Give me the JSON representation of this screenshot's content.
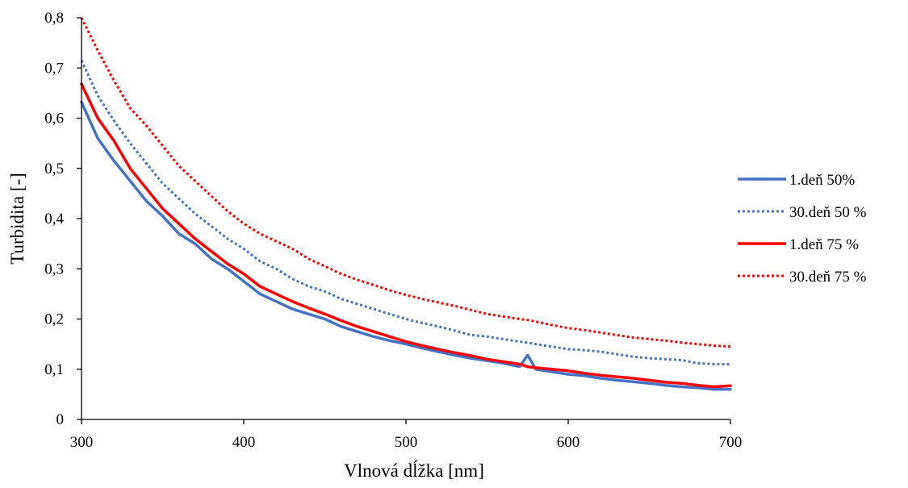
{
  "chart_data": {
    "type": "line",
    "title": "",
    "xlabel": "Vlnová dĺžka [nm]",
    "ylabel": "Turbidita [-]",
    "xlim": [
      300,
      700
    ],
    "ylim": [
      0,
      0.8
    ],
    "x_ticks": [
      300,
      400,
      500,
      600,
      700
    ],
    "x_tick_labels": [
      "300",
      "400",
      "500",
      "600",
      "700"
    ],
    "y_ticks": [
      0,
      0.1,
      0.2,
      0.3,
      0.4,
      0.5,
      0.6,
      0.7,
      0.8
    ],
    "y_tick_labels": [
      "0",
      "0,1",
      "0,2",
      "0,3",
      "0,4",
      "0,5",
      "0,6",
      "0,7",
      "0,8"
    ],
    "grid": false,
    "legend_position": "right",
    "x": [
      300,
      310,
      320,
      330,
      340,
      350,
      360,
      370,
      380,
      390,
      400,
      410,
      420,
      430,
      440,
      450,
      460,
      470,
      480,
      490,
      500,
      510,
      520,
      530,
      540,
      550,
      560,
      570,
      575,
      580,
      590,
      600,
      610,
      620,
      630,
      640,
      650,
      660,
      670,
      680,
      690,
      700
    ],
    "series": [
      {
        "name": "1.deň 50%",
        "color": "#4472C4",
        "style": "solid",
        "values": [
          0.632,
          0.56,
          0.515,
          0.475,
          0.435,
          0.405,
          0.37,
          0.35,
          0.32,
          0.3,
          0.275,
          0.25,
          0.235,
          0.22,
          0.21,
          0.2,
          0.185,
          0.175,
          0.165,
          0.157,
          0.15,
          0.142,
          0.135,
          0.128,
          0.122,
          0.117,
          0.112,
          0.105,
          0.128,
          0.1,
          0.095,
          0.09,
          0.087,
          0.082,
          0.078,
          0.075,
          0.072,
          0.068,
          0.065,
          0.063,
          0.06,
          0.06
        ]
      },
      {
        "name": "30.deň 50 %",
        "color": "#4472C4",
        "style": "dotted",
        "values": [
          0.715,
          0.645,
          0.595,
          0.55,
          0.51,
          0.47,
          0.44,
          0.41,
          0.385,
          0.36,
          0.34,
          0.315,
          0.3,
          0.28,
          0.265,
          0.255,
          0.24,
          0.23,
          0.22,
          0.21,
          0.2,
          0.192,
          0.185,
          0.177,
          0.168,
          0.165,
          0.16,
          0.155,
          0.153,
          0.15,
          0.145,
          0.14,
          0.138,
          0.135,
          0.13,
          0.125,
          0.122,
          0.12,
          0.118,
          0.112,
          0.11,
          0.11
        ]
      },
      {
        "name": "1.deň 75 %",
        "color": "#FF0000",
        "style": "solid",
        "values": [
          0.668,
          0.6,
          0.555,
          0.5,
          0.46,
          0.42,
          0.39,
          0.36,
          0.335,
          0.31,
          0.29,
          0.265,
          0.25,
          0.235,
          0.222,
          0.21,
          0.197,
          0.185,
          0.175,
          0.165,
          0.155,
          0.147,
          0.14,
          0.133,
          0.127,
          0.12,
          0.115,
          0.11,
          0.105,
          0.103,
          0.1,
          0.097,
          0.092,
          0.088,
          0.085,
          0.082,
          0.078,
          0.074,
          0.072,
          0.068,
          0.065,
          0.067
        ]
      },
      {
        "name": "30.deň 75 %",
        "color": "#FF0000",
        "style": "dotted",
        "values": [
          0.8,
          0.735,
          0.675,
          0.62,
          0.585,
          0.545,
          0.505,
          0.475,
          0.445,
          0.415,
          0.39,
          0.37,
          0.355,
          0.34,
          0.32,
          0.305,
          0.29,
          0.278,
          0.268,
          0.257,
          0.248,
          0.24,
          0.233,
          0.226,
          0.218,
          0.21,
          0.205,
          0.2,
          0.198,
          0.195,
          0.188,
          0.182,
          0.178,
          0.173,
          0.168,
          0.163,
          0.16,
          0.157,
          0.153,
          0.15,
          0.147,
          0.145
        ]
      }
    ]
  }
}
